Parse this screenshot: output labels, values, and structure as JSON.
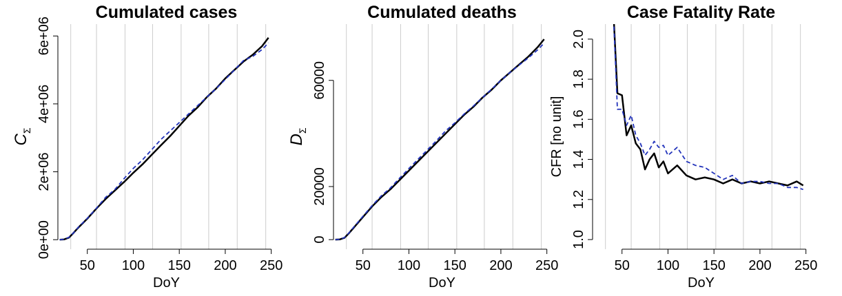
{
  "chart_data": [
    {
      "type": "line",
      "title": "Cumulated cases",
      "xlabel": "DoY",
      "ylabel": "C",
      "ylabel_sub": "Σ",
      "x": [
        20,
        25,
        30,
        35,
        40,
        50,
        60,
        70,
        80,
        90,
        100,
        110,
        120,
        130,
        140,
        150,
        160,
        170,
        180,
        190,
        200,
        210,
        220,
        230,
        240,
        247
      ],
      "series": [
        {
          "color": "#000000",
          "linestyle": "solid",
          "values": [
            0,
            10000,
            60000,
            200000,
            350000,
            620000,
            920000,
            1200000,
            1450000,
            1700000,
            1970000,
            2220000,
            2500000,
            2780000,
            3050000,
            3350000,
            3650000,
            3900000,
            4200000,
            4450000,
            4750000,
            5000000,
            5250000,
            5450000,
            5700000,
            5950000
          ]
        },
        {
          "color": "#2233bb",
          "linestyle": "dashed",
          "values": [
            0,
            10000,
            70000,
            200000,
            360000,
            630000,
            930000,
            1250000,
            1480000,
            1800000,
            2100000,
            2350000,
            2650000,
            2950000,
            3200000,
            3450000,
            3700000,
            3950000,
            4200000,
            4450000,
            4720000,
            5000000,
            5280000,
            5400000,
            5600000,
            5800000
          ]
        }
      ],
      "xlim": [
        18,
        254
      ],
      "xticks": [
        50,
        100,
        150,
        200,
        250
      ],
      "xgrid": [
        32,
        60,
        91,
        121,
        152,
        182,
        213,
        244
      ],
      "ylim": [
        -280000,
        6350000
      ],
      "yticks": [
        {
          "value": 0,
          "label": "0e+00"
        },
        {
          "value": 2000000,
          "label": "2e+06"
        },
        {
          "value": 4000000,
          "label": "4e+06"
        },
        {
          "value": 6000000,
          "label": "6e+06"
        }
      ]
    },
    {
      "type": "line",
      "title": "Cumulated deaths",
      "xlabel": "DoY",
      "ylabel": "D",
      "ylabel_sub": "Σ",
      "x": [
        20,
        25,
        30,
        35,
        40,
        50,
        60,
        70,
        80,
        90,
        100,
        110,
        120,
        130,
        140,
        150,
        160,
        170,
        180,
        190,
        200,
        210,
        220,
        230,
        240,
        247
      ],
      "series": [
        {
          "color": "#000000",
          "linestyle": "solid",
          "values": [
            0,
            100,
            700,
            2500,
            4500,
            8500,
            12500,
            16000,
            19000,
            22500,
            26000,
            29500,
            33000,
            36500,
            40000,
            43500,
            47000,
            50000,
            53500,
            56500,
            60000,
            63000,
            66000,
            69000,
            72500,
            75500
          ]
        },
        {
          "color": "#2233bb",
          "linestyle": "dashed",
          "values": [
            0,
            100,
            800,
            2600,
            4700,
            8800,
            12800,
            16500,
            19500,
            23200,
            26800,
            30300,
            33800,
            37300,
            41000,
            44000,
            47300,
            50300,
            53500,
            56700,
            60000,
            63000,
            65800,
            68500,
            71500,
            74000
          ]
        }
      ],
      "xlim": [
        18,
        254
      ],
      "xticks": [
        50,
        100,
        150,
        200,
        250
      ],
      "xgrid": [
        32,
        60,
        91,
        121,
        152,
        182,
        213,
        244
      ],
      "ylim": [
        -3600,
        81200
      ],
      "yticks": [
        0,
        20000,
        60000
      ]
    },
    {
      "type": "line",
      "title": "Case Fatality Rate",
      "xlabel": "DoY",
      "ylabel": "CFR [no unit]",
      "x": [
        40,
        45,
        50,
        55,
        60,
        65,
        70,
        75,
        80,
        85,
        90,
        95,
        100,
        110,
        120,
        130,
        140,
        150,
        160,
        170,
        180,
        190,
        200,
        210,
        220,
        230,
        240,
        247
      ],
      "series": [
        {
          "color": "#000000",
          "linestyle": "solid",
          "values": [
            2.2,
            1.73,
            1.72,
            1.52,
            1.57,
            1.48,
            1.45,
            1.35,
            1.4,
            1.43,
            1.36,
            1.39,
            1.33,
            1.37,
            1.32,
            1.3,
            1.31,
            1.3,
            1.28,
            1.3,
            1.28,
            1.29,
            1.28,
            1.29,
            1.28,
            1.27,
            1.29,
            1.27
          ]
        },
        {
          "color": "#2233bb",
          "linestyle": "dashed",
          "values": [
            2.2,
            1.65,
            1.65,
            1.57,
            1.62,
            1.52,
            1.48,
            1.42,
            1.45,
            1.49,
            1.46,
            1.47,
            1.42,
            1.46,
            1.39,
            1.37,
            1.36,
            1.33,
            1.3,
            1.32,
            1.28,
            1.29,
            1.29,
            1.28,
            1.28,
            1.26,
            1.26,
            1.25
          ]
        }
      ],
      "xlim": [
        18,
        254
      ],
      "xticks": [
        50,
        100,
        150,
        200,
        250
      ],
      "xgrid": [
        32,
        60,
        91,
        121,
        152,
        182,
        213,
        244
      ],
      "ylim": [
        0.952,
        2.075
      ],
      "yticks": [
        {
          "value": 1,
          "label": "1.0"
        },
        1.2,
        1.4,
        1.6,
        1.8,
        {
          "value": 2,
          "label": "2.0"
        }
      ]
    }
  ]
}
